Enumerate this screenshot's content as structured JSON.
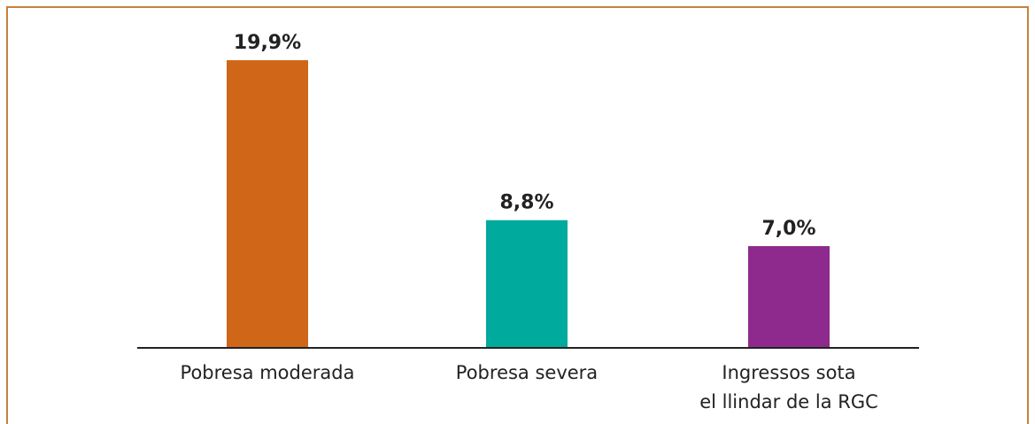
{
  "chart_data": {
    "type": "bar",
    "categories": [
      "Pobresa moderada",
      "Pobresa severa",
      "Ingressos sota\nel llindar de la RGC"
    ],
    "values": [
      19.9,
      8.8,
      7.0
    ],
    "value_labels": [
      "19,9%",
      "8,8%",
      "7,0%"
    ],
    "colors": [
      "#d06618",
      "#00aa9c",
      "#8e2a8e"
    ]
  }
}
